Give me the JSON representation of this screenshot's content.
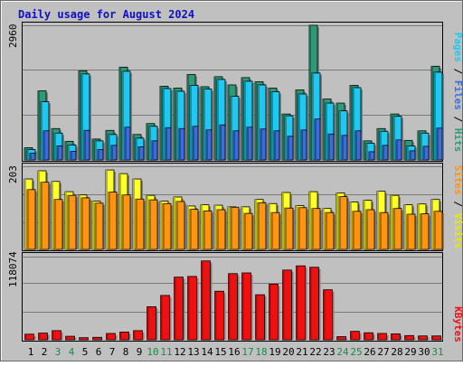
{
  "chart_data": {
    "type": "bar",
    "title": "Daily usage for August 2024",
    "categories": [
      "1",
      "2",
      "3",
      "4",
      "5",
      "6",
      "7",
      "8",
      "9",
      "10",
      "11",
      "12",
      "13",
      "14",
      "15",
      "16",
      "17",
      "18",
      "19",
      "20",
      "21",
      "22",
      "23",
      "24",
      "25",
      "26",
      "27",
      "28",
      "29",
      "30",
      "31"
    ],
    "weekend_days": [
      "3",
      "4",
      "10",
      "11",
      "17",
      "18",
      "24",
      "25",
      "31"
    ],
    "panels": [
      {
        "name": "hits-files-pages",
        "max_label": "2960",
        "ylim": [
          0,
          2960
        ],
        "right_labels": [
          "Pages",
          "Files",
          "Hits"
        ],
        "series": [
          {
            "name": "Hits",
            "color": "#2f9a7a",
            "values": [
              270,
              1520,
              690,
              410,
              1960,
              460,
              650,
              2040,
              560,
              800,
              1620,
              1580,
              1880,
              1610,
              1830,
              1650,
              1810,
              1720,
              1580,
              1010,
              1540,
              2960,
              1340,
              1250,
              1640,
              420,
              690,
              1010,
              430,
              640,
              2060
            ]
          },
          {
            "name": "Files",
            "color": "#1ec8f0",
            "values": [
              230,
              1280,
              590,
              330,
              1890,
              420,
              560,
              1950,
              480,
              740,
              1570,
              1510,
              1640,
              1560,
              1770,
              1400,
              1730,
              1650,
              1500,
              970,
              1450,
              1910,
              1250,
              1080,
              1590,
              370,
              630,
              960,
              310,
              590,
              1930
            ]
          },
          {
            "name": "Pages",
            "color": "#3a6ee0",
            "values": [
              150,
              640,
              310,
              190,
              650,
              230,
              320,
              720,
              290,
              420,
              710,
              690,
              740,
              660,
              770,
              640,
              720,
              680,
              640,
              520,
              660,
              900,
              570,
              540,
              640,
              180,
              320,
              440,
              200,
              300,
              700
            ]
          }
        ]
      },
      {
        "name": "visits-sites",
        "max_label": "203",
        "ylim": [
          0,
          203
        ],
        "right_labels": [
          "Sites",
          "Visits"
        ],
        "series": [
          {
            "name": "Visits",
            "color": "#ffff2a",
            "values": [
              172,
              192,
              166,
              141,
              133,
              118,
              194,
              185,
              172,
              132,
              118,
              128,
              106,
              109,
              108,
              104,
              104,
              122,
              112,
              139,
              107,
              141,
              100,
              138,
              116,
              120,
              142,
              132,
              109,
              111,
              122
            ]
          },
          {
            "name": "Sites",
            "color": "#ff9410",
            "values": [
              146,
              164,
              122,
              132,
              126,
              113,
              140,
              133,
              123,
              121,
              112,
              117,
              98,
              94,
              97,
              103,
              88,
              114,
              90,
              101,
              102,
              100,
              90,
              129,
              93,
              97,
              90,
              100,
              86,
              87,
              93
            ]
          }
        ]
      },
      {
        "name": "kbytes",
        "max_label": "118074",
        "ylim": [
          0,
          118074
        ],
        "right_labels": [
          "KBytes"
        ],
        "series": [
          {
            "name": "KBytes",
            "color": "#f01010",
            "values": [
              8000,
              9500,
              13000,
              5000,
              3000,
              3500,
              9000,
              11000,
              13000,
              47000,
              63000,
              89000,
              90000,
              112000,
              69000,
              94000,
              95000,
              64000,
              79000,
              99000,
              105000,
              103000,
              71000,
              4500,
              12000,
              10000,
              9000,
              8500,
              6000,
              5500,
              5500
            ]
          }
        ]
      }
    ]
  }
}
